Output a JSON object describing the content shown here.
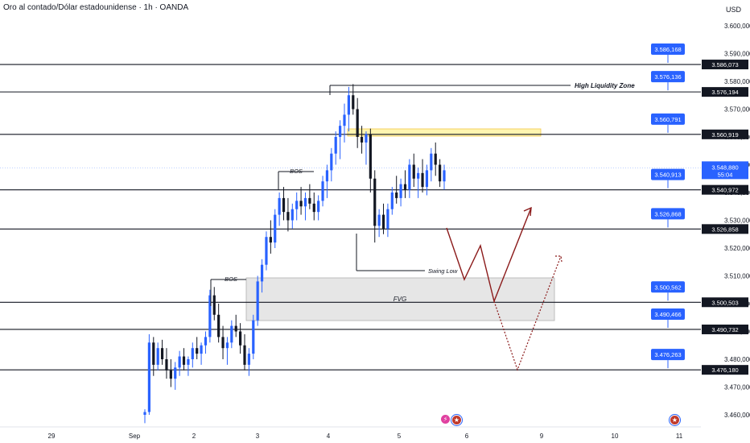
{
  "header": {
    "title": "Oro al contado/Dólar estadounidense · 1h · OANDA",
    "currency": "USD"
  },
  "icons": {
    "event_icon_1": "lightning-icon",
    "event_icon_2": "us-flag-icon",
    "event_icon_3": "us-flag-icon"
  },
  "chart_data": {
    "type": "candlestick",
    "symbol": "Oro al contado/Dólar estadounidense",
    "timeframe": "1h",
    "broker": "OANDA",
    "currency": "USD",
    "ylim": [
      3456000,
      3606000
    ],
    "y_ticks": [
      "3.600,000",
      "3.590,000",
      "3.580,000",
      "3.570,000",
      "3.560,000",
      "3.550,000",
      "3.540,000",
      "3.530,000",
      "3.520,000",
      "3.510,000",
      "3.500,000",
      "3.490,000",
      "3.480,000",
      "3.470,000",
      "3.460,000"
    ],
    "y_tick_values": [
      3600000,
      3590000,
      3580000,
      3570000,
      3560000,
      3550000,
      3540000,
      3530000,
      3520000,
      3510000,
      3500000,
      3490000,
      3480000,
      3470000,
      3460000
    ],
    "x_ticks": [
      "29",
      "Sep",
      "2",
      "3",
      "4",
      "5",
      "6",
      "9",
      "10",
      "11"
    ],
    "current_price": "3.548,880",
    "countdown": "55:04",
    "horizontal_levels": [
      {
        "value": 3586073,
        "label": "3.586,073",
        "badge": "3.586,168"
      },
      {
        "value": 3576194,
        "label": "3.576,194",
        "badge": "3.576,136"
      },
      {
        "value": 3560919,
        "label": "3.560,919",
        "badge": "3.560,791"
      },
      {
        "value": 3540972,
        "label": "3.540,972",
        "badge": "3.540,913"
      },
      {
        "value": 3526858,
        "label": "3.526,858",
        "badge": "3.526,868"
      },
      {
        "value": 3500503,
        "label": "3.500,503",
        "badge": "3.500,562"
      },
      {
        "value": 3490732,
        "label": "3.490,732",
        "badge": "3.490,466"
      },
      {
        "value": 3476180,
        "label": "3.476,180",
        "badge": "3.476,263"
      }
    ],
    "annotations": [
      "High Liquidity Zone",
      "BOS",
      "BOS",
      "Swing Low",
      "FVG"
    ],
    "candles": [
      [
        3460000,
        3462000,
        3457000,
        3461000
      ],
      [
        3461000,
        3489000,
        3460000,
        3486000
      ],
      [
        3486000,
        3488000,
        3474000,
        3478000
      ],
      [
        3478000,
        3486000,
        3476000,
        3484000
      ],
      [
        3484000,
        3487000,
        3478000,
        3480000
      ],
      [
        3480000,
        3484000,
        3473000,
        3476000
      ],
      [
        3476000,
        3480000,
        3470000,
        3473000
      ],
      [
        3473000,
        3479000,
        3469000,
        3477000
      ],
      [
        3477000,
        3483000,
        3474000,
        3481000
      ],
      [
        3481000,
        3484000,
        3476000,
        3478000
      ],
      [
        3478000,
        3481000,
        3474000,
        3480000
      ],
      [
        3480000,
        3486000,
        3477000,
        3484000
      ],
      [
        3484000,
        3488000,
        3480000,
        3482000
      ],
      [
        3482000,
        3486000,
        3478000,
        3485000
      ],
      [
        3485000,
        3490000,
        3482000,
        3488000
      ],
      [
        3488000,
        3505000,
        3486000,
        3503000
      ],
      [
        3503000,
        3506000,
        3494000,
        3496000
      ],
      [
        3496000,
        3500000,
        3486000,
        3488000
      ],
      [
        3488000,
        3492000,
        3480000,
        3484000
      ],
      [
        3484000,
        3488000,
        3478000,
        3486000
      ],
      [
        3486000,
        3494000,
        3484000,
        3492000
      ],
      [
        3492000,
        3496000,
        3488000,
        3490000
      ],
      [
        3490000,
        3493000,
        3482000,
        3485000
      ],
      [
        3485000,
        3489000,
        3476000,
        3478000
      ],
      [
        3478000,
        3484000,
        3474000,
        3482000
      ],
      [
        3482000,
        3496000,
        3480000,
        3494000
      ],
      [
        3494000,
        3510000,
        3492000,
        3508000
      ],
      [
        3508000,
        3516000,
        3504000,
        3514000
      ],
      [
        3514000,
        3526000,
        3512000,
        3524000
      ],
      [
        3524000,
        3530000,
        3518000,
        3522000
      ],
      [
        3522000,
        3534000,
        3520000,
        3532000
      ],
      [
        3532000,
        3540000,
        3528000,
        3538000
      ],
      [
        3538000,
        3542000,
        3530000,
        3533000
      ],
      [
        3533000,
        3538000,
        3526000,
        3530000
      ],
      [
        3530000,
        3536000,
        3527000,
        3534000
      ],
      [
        3534000,
        3540000,
        3530000,
        3537000
      ],
      [
        3537000,
        3542000,
        3532000,
        3535000
      ],
      [
        3535000,
        3540000,
        3530000,
        3538000
      ],
      [
        3538000,
        3543000,
        3534000,
        3536000
      ],
      [
        3536000,
        3540000,
        3530000,
        3533000
      ],
      [
        3533000,
        3539000,
        3530000,
        3537000
      ],
      [
        3537000,
        3546000,
        3535000,
        3544000
      ],
      [
        3544000,
        3550000,
        3538000,
        3548000
      ],
      [
        3548000,
        3556000,
        3544000,
        3554000
      ],
      [
        3554000,
        3562000,
        3550000,
        3560000
      ],
      [
        3560000,
        3566000,
        3552000,
        3564000
      ],
      [
        3564000,
        3572000,
        3558000,
        3568000
      ],
      [
        3568000,
        3578000,
        3562000,
        3575000
      ],
      [
        3575000,
        3579000,
        3568000,
        3570000
      ],
      [
        3570000,
        3574000,
        3556000,
        3560000
      ],
      [
        3560000,
        3564000,
        3554000,
        3558000
      ],
      [
        3558000,
        3562000,
        3550000,
        3561000
      ],
      [
        3561000,
        3563000,
        3540000,
        3545000
      ],
      [
        3545000,
        3548000,
        3522000,
        3528000
      ],
      [
        3528000,
        3534000,
        3524000,
        3532000
      ],
      [
        3532000,
        3536000,
        3525000,
        3527000
      ],
      [
        3527000,
        3536000,
        3524000,
        3534000
      ],
      [
        3534000,
        3542000,
        3532000,
        3540000
      ],
      [
        3540000,
        3546000,
        3536000,
        3538000
      ],
      [
        3538000,
        3545000,
        3535000,
        3543000
      ],
      [
        3543000,
        3548000,
        3538000,
        3541000
      ],
      [
        3541000,
        3552000,
        3538000,
        3550000
      ],
      [
        3550000,
        3554000,
        3542000,
        3545000
      ],
      [
        3545000,
        3549000,
        3538000,
        3547000
      ],
      [
        3547000,
        3552000,
        3540000,
        3542000
      ],
      [
        3542000,
        3550000,
        3539000,
        3548000
      ],
      [
        3548000,
        3556000,
        3544000,
        3554000
      ],
      [
        3554000,
        3558000,
        3546000,
        3550000
      ],
      [
        3550000,
        3552000,
        3542000,
        3544000
      ],
      [
        3544000,
        3550000,
        3541000,
        3548000
      ]
    ],
    "projection_solid": [
      [
        3524000
      ],
      [
        3504000
      ],
      [
        3518000
      ],
      [
        3497000
      ],
      [
        3533000
      ]
    ],
    "projection_dotted": [
      [
        3500000
      ],
      [
        3475000
      ],
      [
        3516000
      ]
    ]
  }
}
